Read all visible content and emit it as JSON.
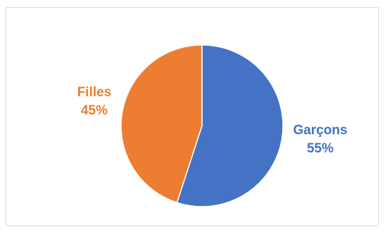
{
  "chart_data": {
    "type": "pie",
    "title": "",
    "start_angle_deg": 0,
    "direction": "clockwise",
    "slices": [
      {
        "category": "Garçons",
        "value": 55,
        "percent_label": "55%",
        "color": "#4472c4"
      },
      {
        "category": "Filles",
        "value": 45,
        "percent_label": "45%",
        "color": "#ed7d31"
      }
    ],
    "legend": "none",
    "data_labels": "outside, category and percentage"
  }
}
